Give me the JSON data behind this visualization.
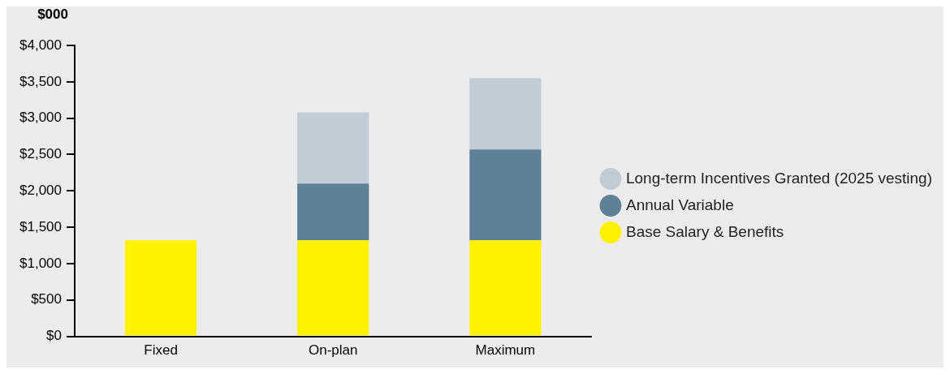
{
  "chart_data": {
    "type": "bar",
    "ylabel": "$000",
    "categories": [
      "Fixed",
      "On-plan",
      "Maximum"
    ],
    "stacked": true,
    "legend": "right",
    "grid": false,
    "series": [
      {
        "name": "Base Salary & Benefits",
        "color": "#fff200",
        "values": [
          1320,
          1320,
          1320
        ]
      },
      {
        "name": "Annual Variable",
        "color": "#5e8197",
        "values": [
          null,
          780,
          1250
        ]
      },
      {
        "name": "Long-term Incentives Granted (2025 vesting)",
        "color": "#c2ccd6",
        "values": [
          null,
          980,
          980
        ]
      }
    ],
    "ylim": [
      0,
      4000
    ],
    "yticks": [
      {
        "value": 0,
        "label": "$0"
      },
      {
        "value": 500,
        "label": "$500"
      },
      {
        "value": 1000,
        "label": "$1,000"
      },
      {
        "value": 1500,
        "label": "$1,500"
      },
      {
        "value": 2000,
        "label": "$2,000"
      },
      {
        "value": 2500,
        "label": "$2,500"
      },
      {
        "value": 3000,
        "label": "$3,000"
      },
      {
        "value": 3500,
        "label": "$3,500"
      },
      {
        "value": 4000,
        "label": "$4,000"
      }
    ]
  }
}
